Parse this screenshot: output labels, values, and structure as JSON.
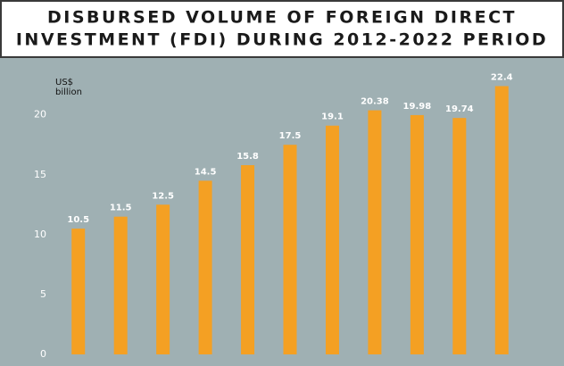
{
  "chart_data": {
    "type": "bar",
    "title": [
      "DISBURSED VOLUME OF FOREIGN DIRECT",
      "INVESTMENT (FDI) DURING 2012-2022 PERIOD"
    ],
    "y_label": [
      "US$",
      "billion"
    ],
    "categories": [
      null,
      null,
      null,
      null,
      null,
      null,
      null,
      null,
      null,
      null,
      null
    ],
    "values": [
      10.5,
      11.5,
      12.5,
      14.5,
      15.8,
      17.5,
      19.1,
      20.38,
      19.98,
      19.74,
      22.4
    ],
    "color": "#f4a023",
    "ylim": [
      0,
      24
    ],
    "yticks": [
      0,
      5,
      10,
      15,
      20
    ],
    "grid": false
  }
}
